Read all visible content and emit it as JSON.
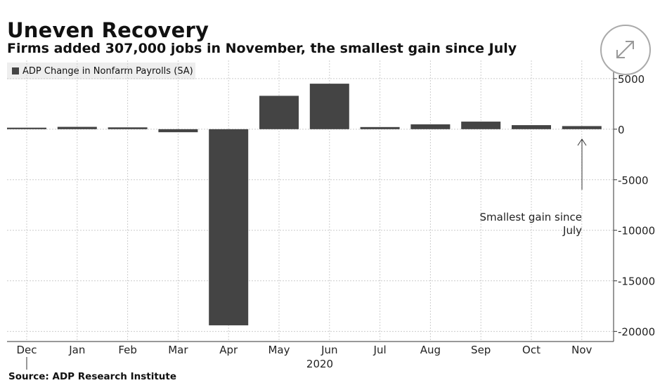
{
  "header": {
    "title": "Uneven Recovery",
    "subtitle": "Firms added 307,000 jobs in November, the smallest gain since July"
  },
  "legend": {
    "label": "ADP Change in Nonfarm Payrolls (SA)"
  },
  "expand_button": {
    "icon": "expand-icon"
  },
  "annotation": {
    "line1": "Smallest gain since",
    "line2": "July"
  },
  "footer": {
    "source": "Source: ADP Research Institute"
  },
  "colors": {
    "bar": "#444444",
    "grid": "#cccccc",
    "legend_bg": "#eeeeee"
  },
  "chart_data": {
    "type": "bar",
    "title": "Uneven Recovery",
    "subtitle": "Firms added 307,000 jobs in November, the smallest gain since July",
    "categories": [
      "Dec",
      "Jan",
      "Feb",
      "Mar",
      "Apr",
      "May",
      "Jun",
      "Jul",
      "Aug",
      "Sep",
      "Oct",
      "Nov"
    ],
    "x_year_label": "2020",
    "series": [
      {
        "name": "ADP Change in Nonfarm Payrolls (SA)",
        "values": [
          150,
          230,
          180,
          -300,
          -19400,
          3300,
          4500,
          210,
          480,
          750,
          400,
          307
        ]
      }
    ],
    "yticks": [
      5000,
      0,
      -5000,
      -10000,
      -15000,
      -20000
    ],
    "ylim": [
      -21000,
      6800
    ],
    "y_axis_position": "right",
    "grid": true,
    "legend_position": "top-left"
  }
}
